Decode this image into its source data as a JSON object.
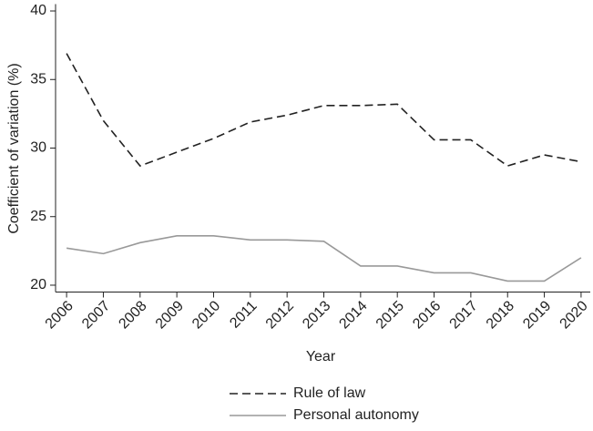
{
  "chart_data": {
    "type": "line",
    "x_label": "Year",
    "y_label": "Coefficient of variation (%)",
    "x": [
      2006,
      2007,
      2008,
      2009,
      2010,
      2011,
      2012,
      2013,
      2014,
      2015,
      2016,
      2017,
      2018,
      2019,
      2020
    ],
    "series": [
      {
        "name": "Rule of law",
        "color": "#222222",
        "style": "dashed",
        "values": [
          36.9,
          32.0,
          28.7,
          29.7,
          30.7,
          31.9,
          32.4,
          33.1,
          33.1,
          33.2,
          30.6,
          30.6,
          28.7,
          29.5,
          29.0
        ]
      },
      {
        "name": "Personal autonomy",
        "color": "#999999",
        "style": "solid",
        "values": [
          22.7,
          22.3,
          23.1,
          23.6,
          23.6,
          23.3,
          23.3,
          23.2,
          21.4,
          21.4,
          20.9,
          20.9,
          20.3,
          20.3,
          22.0
        ]
      }
    ],
    "xlim": [
      2005.7,
      2020.25
    ],
    "xticks": [
      2006,
      2007,
      2008,
      2009,
      2010,
      2011,
      2012,
      2013,
      2014,
      2015,
      2016,
      2017,
      2018,
      2019,
      2020
    ],
    "ylim": [
      19.5,
      40.5
    ],
    "yticks": [
      20,
      25,
      30,
      35,
      40
    ],
    "grid": false,
    "legend": "bottom"
  }
}
